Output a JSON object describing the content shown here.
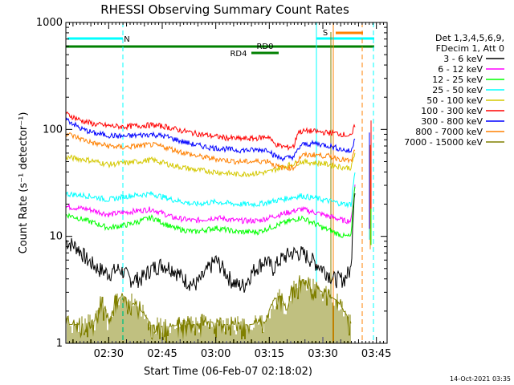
{
  "chart_data": {
    "type": "line",
    "title": "RHESSI Observing Summary Count Rates",
    "xlabel": "Start Time (06-Feb-07 02:18:02)",
    "ylabel": "Count Rate (s⁻¹ detector⁻¹)",
    "ylog": true,
    "ylim": [
      1,
      1000
    ],
    "xlim_minutes": [
      0,
      90
    ],
    "x_ticks": [
      {
        "label": "02:30",
        "minutes": 12
      },
      {
        "label": "02:45",
        "minutes": 27
      },
      {
        "label": "03:00",
        "minutes": 42
      },
      {
        "label": "03:15",
        "minutes": 57
      },
      {
        "label": "03:30",
        "minutes": 72
      },
      {
        "label": "03:45",
        "minutes": 87
      }
    ],
    "y_ticks": [
      {
        "label": "1",
        "value": 1
      },
      {
        "label": "10",
        "value": 10
      },
      {
        "label": "100",
        "value": 100
      },
      {
        "label": "1000",
        "value": 1000
      }
    ],
    "legend_header": [
      "Det 1,3,4,5,6,9,",
      "FDecim 1, Att 0"
    ],
    "legend_position": "right",
    "series": [
      {
        "name": "3 - 6 keV",
        "color": "#000000",
        "points": [
          [
            0,
            9
          ],
          [
            3,
            8
          ],
          [
            6,
            6
          ],
          [
            9,
            5
          ],
          [
            12,
            4.5
          ],
          [
            15,
            5
          ],
          [
            18,
            4
          ],
          [
            21,
            4
          ],
          [
            24,
            5
          ],
          [
            27,
            5.5
          ],
          [
            30,
            5
          ],
          [
            33,
            4
          ],
          [
            36,
            3.5
          ],
          [
            38,
            4
          ],
          [
            40,
            5
          ],
          [
            42,
            6
          ],
          [
            44,
            5
          ],
          [
            46,
            4
          ],
          [
            48,
            3.5
          ],
          [
            50,
            3.5
          ],
          [
            53,
            5
          ],
          [
            56,
            6
          ],
          [
            58,
            5
          ],
          [
            60,
            6
          ],
          [
            63,
            7
          ],
          [
            66,
            7
          ],
          [
            69,
            6
          ],
          [
            72,
            5
          ],
          [
            75,
            4
          ],
          [
            78,
            4
          ],
          [
            80,
            5
          ],
          [
            81,
            30
          ]
        ]
      },
      {
        "name": "6 - 12 keV",
        "color": "#ff00ff",
        "points": [
          [
            0,
            19
          ],
          [
            6,
            18
          ],
          [
            12,
            16
          ],
          [
            18,
            17
          ],
          [
            24,
            18
          ],
          [
            30,
            15
          ],
          [
            36,
            14
          ],
          [
            42,
            15
          ],
          [
            48,
            14
          ],
          [
            54,
            14
          ],
          [
            57,
            15
          ],
          [
            60,
            16
          ],
          [
            66,
            18
          ],
          [
            72,
            16
          ],
          [
            78,
            14
          ],
          [
            80,
            14
          ],
          [
            81,
            30
          ]
        ]
      },
      {
        "name": "12 - 25 keV",
        "color": "#00ff00",
        "points": [
          [
            0,
            16
          ],
          [
            6,
            14
          ],
          [
            12,
            12
          ],
          [
            18,
            13
          ],
          [
            24,
            15
          ],
          [
            30,
            12
          ],
          [
            36,
            11
          ],
          [
            42,
            12
          ],
          [
            48,
            11
          ],
          [
            54,
            11
          ],
          [
            57,
            12
          ],
          [
            60,
            13
          ],
          [
            66,
            15
          ],
          [
            72,
            12
          ],
          [
            78,
            10
          ],
          [
            80,
            10
          ],
          [
            81,
            30
          ]
        ]
      },
      {
        "name": "25 - 50 keV",
        "color": "#00ffff",
        "points": [
          [
            0,
            25
          ],
          [
            6,
            24
          ],
          [
            12,
            22
          ],
          [
            18,
            24
          ],
          [
            24,
            25
          ],
          [
            30,
            22
          ],
          [
            36,
            20
          ],
          [
            42,
            21
          ],
          [
            48,
            20
          ],
          [
            54,
            20
          ],
          [
            57,
            21
          ],
          [
            60,
            22
          ],
          [
            66,
            24
          ],
          [
            72,
            22
          ],
          [
            78,
            20
          ],
          [
            80,
            20
          ],
          [
            81,
            40
          ]
        ]
      },
      {
        "name": "50 - 100 keV",
        "color": "#d4c800",
        "points": [
          [
            0,
            55
          ],
          [
            6,
            52
          ],
          [
            12,
            47
          ],
          [
            18,
            49
          ],
          [
            24,
            52
          ],
          [
            30,
            46
          ],
          [
            36,
            42
          ],
          [
            42,
            40
          ],
          [
            48,
            38
          ],
          [
            54,
            39
          ],
          [
            57,
            40
          ],
          [
            60,
            44
          ],
          [
            66,
            50
          ],
          [
            72,
            48
          ],
          [
            78,
            44
          ],
          [
            80,
            44
          ],
          [
            81,
            60
          ]
        ]
      },
      {
        "name": "100 - 300 keV",
        "color": "#ff0000",
        "points": [
          [
            0,
            140
          ],
          [
            4,
            122
          ],
          [
            8,
            112
          ],
          [
            12,
            108
          ],
          [
            16,
            106
          ],
          [
            20,
            108
          ],
          [
            24,
            110
          ],
          [
            28,
            106
          ],
          [
            32,
            98
          ],
          [
            36,
            92
          ],
          [
            40,
            88
          ],
          [
            44,
            84
          ],
          [
            48,
            82
          ],
          [
            52,
            82
          ],
          [
            55,
            84
          ],
          [
            57,
            86
          ],
          [
            58,
            75
          ],
          [
            60,
            70
          ],
          [
            62,
            68
          ],
          [
            64,
            70
          ],
          [
            65,
            95
          ],
          [
            68,
            97
          ],
          [
            72,
            94
          ],
          [
            76,
            92
          ],
          [
            79,
            88
          ],
          [
            80,
            85
          ],
          [
            81,
            110
          ]
        ]
      },
      {
        "name": "300 - 800 keV",
        "color": "#0000ff",
        "points": [
          [
            0,
            125
          ],
          [
            4,
            102
          ],
          [
            8,
            92
          ],
          [
            12,
            88
          ],
          [
            16,
            86
          ],
          [
            20,
            88
          ],
          [
            24,
            90
          ],
          [
            28,
            86
          ],
          [
            32,
            78
          ],
          [
            36,
            72
          ],
          [
            40,
            68
          ],
          [
            44,
            66
          ],
          [
            48,
            64
          ],
          [
            52,
            64
          ],
          [
            57,
            65
          ],
          [
            58,
            58
          ],
          [
            60,
            54
          ],
          [
            62,
            54
          ],
          [
            64,
            56
          ],
          [
            66,
            72
          ],
          [
            70,
            74
          ],
          [
            74,
            70
          ],
          [
            78,
            64
          ],
          [
            80,
            62
          ],
          [
            81,
            85
          ]
        ]
      },
      {
        "name": "800 - 7000 keV",
        "color": "#ff8000",
        "points": [
          [
            0,
            92
          ],
          [
            4,
            82
          ],
          [
            8,
            74
          ],
          [
            12,
            70
          ],
          [
            16,
            68
          ],
          [
            20,
            70
          ],
          [
            24,
            72
          ],
          [
            28,
            68
          ],
          [
            32,
            62
          ],
          [
            36,
            57
          ],
          [
            40,
            54
          ],
          [
            44,
            52
          ],
          [
            48,
            50
          ],
          [
            52,
            50
          ],
          [
            57,
            51
          ],
          [
            58,
            47
          ],
          [
            60,
            44
          ],
          [
            64,
            44
          ],
          [
            66,
            57
          ],
          [
            70,
            58
          ],
          [
            74,
            56
          ],
          [
            78,
            52
          ],
          [
            80,
            50
          ],
          [
            81,
            65
          ]
        ]
      },
      {
        "name": "7000 - 15000 keV",
        "color": "#808000",
        "points": [
          [
            0,
            1.5
          ],
          [
            4,
            1.5
          ],
          [
            8,
            1.6
          ],
          [
            10,
            2.5
          ],
          [
            12,
            1.5
          ],
          [
            14,
            2.5
          ],
          [
            16,
            2.8
          ],
          [
            20,
            2.2
          ],
          [
            24,
            1.5
          ],
          [
            28,
            1.4
          ],
          [
            32,
            1.5
          ],
          [
            36,
            1.5
          ],
          [
            40,
            1.6
          ],
          [
            44,
            1.5
          ],
          [
            48,
            1.5
          ],
          [
            52,
            1.5
          ],
          [
            56,
            1.6
          ],
          [
            58,
            2.5
          ],
          [
            60,
            2.8
          ],
          [
            62,
            2.0
          ],
          [
            64,
            3.5
          ],
          [
            66,
            3.8
          ],
          [
            68,
            3.5
          ],
          [
            72,
            3.0
          ],
          [
            76,
            2.5
          ],
          [
            78,
            2.0
          ],
          [
            80,
            1.5
          ]
        ]
      }
    ],
    "annotations": [
      {
        "label": "N",
        "color": "#00ffff"
      },
      {
        "label": "RD0",
        "color": "#008000"
      },
      {
        "label": "RD4",
        "color": "#008000"
      },
      {
        "label": "S",
        "color": "#ff8000"
      }
    ]
  },
  "timestamp": "14-Oct-2021 03:35"
}
